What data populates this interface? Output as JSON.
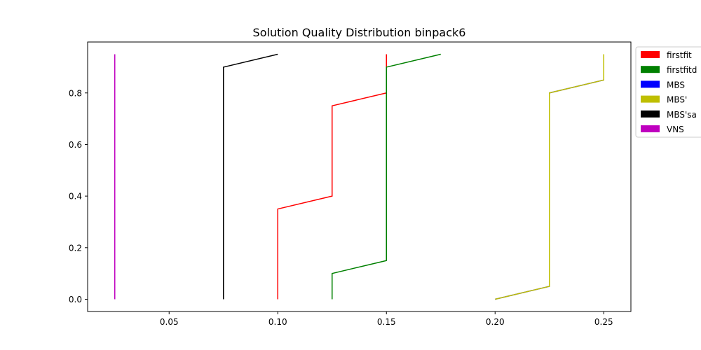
{
  "chart_data": {
    "type": "line",
    "title": "Solution Quality Distribution binpack6",
    "xlabel": "",
    "ylabel": "",
    "xlim": [
      0.0125,
      0.2625
    ],
    "ylim": [
      -0.0475,
      0.9975
    ],
    "xticks": [
      {
        "value": 0.05,
        "label": "0.05"
      },
      {
        "value": 0.1,
        "label": "0.10"
      },
      {
        "value": 0.15,
        "label": "0.15"
      },
      {
        "value": 0.2,
        "label": "0.20"
      },
      {
        "value": 0.25,
        "label": "0.25"
      }
    ],
    "yticks": [
      {
        "value": 0.0,
        "label": "0.0"
      },
      {
        "value": 0.2,
        "label": "0.2"
      },
      {
        "value": 0.4,
        "label": "0.4"
      },
      {
        "value": 0.6,
        "label": "0.6"
      },
      {
        "value": 0.8,
        "label": "0.8"
      }
    ],
    "grid": false,
    "legend_position": "outside-right",
    "series": [
      {
        "name": "firstfit",
        "color": "#ff0000",
        "points": [
          [
            0.1,
            0.0
          ],
          [
            0.1,
            0.35
          ],
          [
            0.125,
            0.4
          ],
          [
            0.125,
            0.75
          ],
          [
            0.15,
            0.8
          ],
          [
            0.15,
            0.95
          ]
        ]
      },
      {
        "name": "firstfitd",
        "color": "#008000",
        "points": [
          [
            0.125,
            0.0
          ],
          [
            0.125,
            0.1
          ],
          [
            0.15,
            0.15
          ],
          [
            0.15,
            0.9
          ],
          [
            0.175,
            0.95
          ]
        ]
      },
      {
        "name": "MBS",
        "color": "#0000ff",
        "points": [
          [
            0.2,
            0.0
          ],
          [
            0.225,
            0.05
          ],
          [
            0.225,
            0.8
          ],
          [
            0.25,
            0.85
          ],
          [
            0.25,
            0.95
          ]
        ]
      },
      {
        "name": "MBS'",
        "color": "#bfbf00",
        "points": [
          [
            0.2,
            0.0
          ],
          [
            0.225,
            0.05
          ],
          [
            0.225,
            0.8
          ],
          [
            0.25,
            0.85
          ],
          [
            0.25,
            0.95
          ]
        ]
      },
      {
        "name": "MBS'sa",
        "color": "#000000",
        "points": [
          [
            0.075,
            0.0
          ],
          [
            0.075,
            0.9
          ],
          [
            0.1,
            0.95
          ]
        ]
      },
      {
        "name": "VNS",
        "color": "#bf00bf",
        "points": [
          [
            0.025,
            0.0
          ],
          [
            0.025,
            0.95
          ]
        ]
      }
    ]
  }
}
